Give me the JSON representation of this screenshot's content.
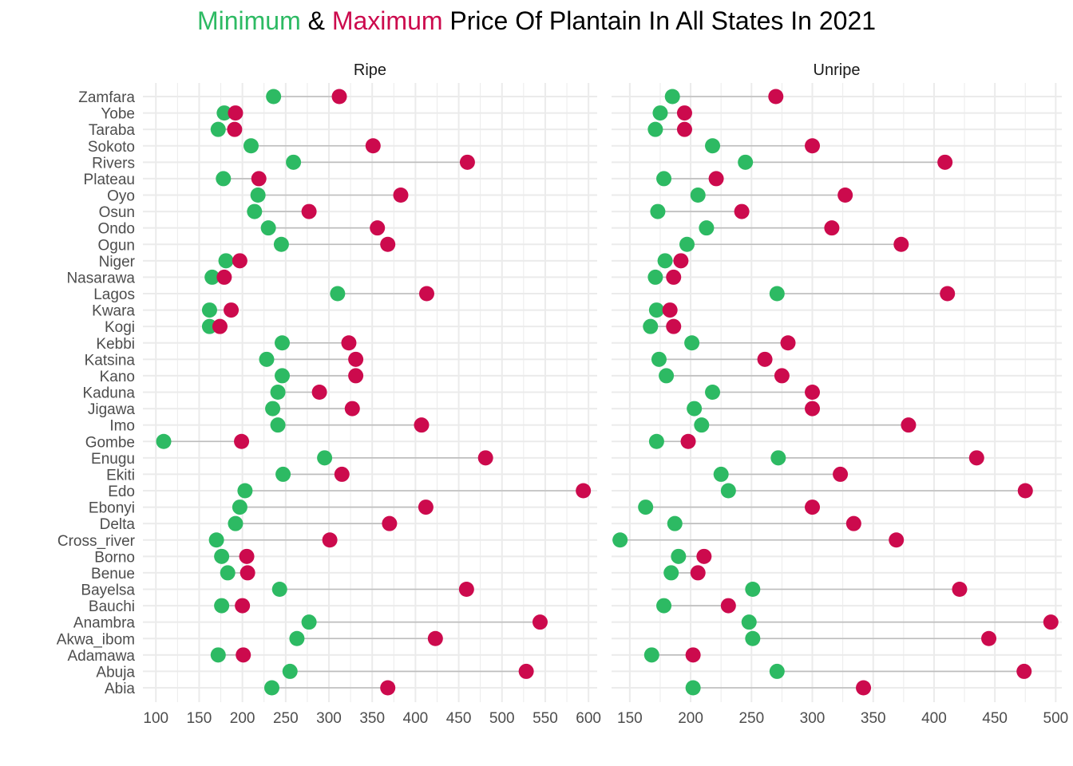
{
  "title": {
    "part1": "Minimum",
    "part2": " & ",
    "part3": "Maximum",
    "part4": " Price Of Plantain In All States In 2021"
  },
  "colors": {
    "min": "#2dba63",
    "max": "#cc0a4d",
    "segment": "#bdbdbd",
    "grid": "#ebebeb"
  },
  "chart_data": {
    "type": "dumbbell",
    "states": [
      "Zamfara",
      "Yobe",
      "Taraba",
      "Sokoto",
      "Rivers",
      "Plateau",
      "Oyo",
      "Osun",
      "Ondo",
      "Ogun",
      "Niger",
      "Nasarawa",
      "Lagos",
      "Kwara",
      "Kogi",
      "Kebbi",
      "Katsina",
      "Kano",
      "Kaduna",
      "Jigawa",
      "Imo",
      "Gombe",
      "Enugu",
      "Ekiti",
      "Edo",
      "Ebonyi",
      "Delta",
      "Cross_river",
      "Borno",
      "Benue",
      "Bayelsa",
      "Bauchi",
      "Anambra",
      "Akwa_ibom",
      "Adamawa",
      "Abuja",
      "Abia"
    ],
    "series_names": [
      "Minimum",
      "Maximum"
    ],
    "facets": [
      {
        "label": "Ripe",
        "xlim": [
          85,
          610
        ],
        "xticks": [
          100,
          150,
          200,
          250,
          300,
          350,
          400,
          450,
          500,
          550,
          600
        ],
        "min": [
          236,
          179,
          172,
          210,
          259,
          178,
          218,
          214,
          230,
          245,
          181,
          165,
          310,
          162,
          162,
          246,
          228,
          246,
          241,
          235,
          241,
          109,
          295,
          247,
          203,
          197,
          192,
          170,
          176,
          183,
          243,
          176,
          277,
          263,
          172,
          255,
          234
        ],
        "max": [
          312,
          192,
          191,
          351,
          460,
          219,
          383,
          277,
          356,
          368,
          197,
          179,
          413,
          187,
          174,
          323,
          331,
          331,
          289,
          327,
          407,
          199,
          481,
          315,
          594,
          412,
          370,
          301,
          205,
          206,
          459,
          200,
          544,
          423,
          201,
          528,
          368
        ]
      },
      {
        "label": "Unripe",
        "xlim": [
          135,
          505
        ],
        "xticks": [
          150,
          200,
          250,
          300,
          350,
          400,
          450,
          500
        ],
        "min": [
          185,
          175,
          171,
          218,
          245,
          178,
          206,
          173,
          213,
          197,
          179,
          171,
          271,
          172,
          167,
          201,
          174,
          180,
          218,
          203,
          209,
          172,
          272,
          225,
          231,
          163,
          187,
          142,
          190,
          184,
          251,
          178,
          248,
          251,
          168,
          271,
          202
        ],
        "max": [
          270,
          195,
          195,
          300,
          409,
          221,
          327,
          242,
          316,
          373,
          192,
          186,
          411,
          183,
          186,
          280,
          261,
          275,
          300,
          300,
          379,
          198,
          435,
          323,
          475,
          300,
          334,
          369,
          211,
          206,
          421,
          231,
          496,
          445,
          202,
          474,
          342
        ]
      }
    ]
  }
}
